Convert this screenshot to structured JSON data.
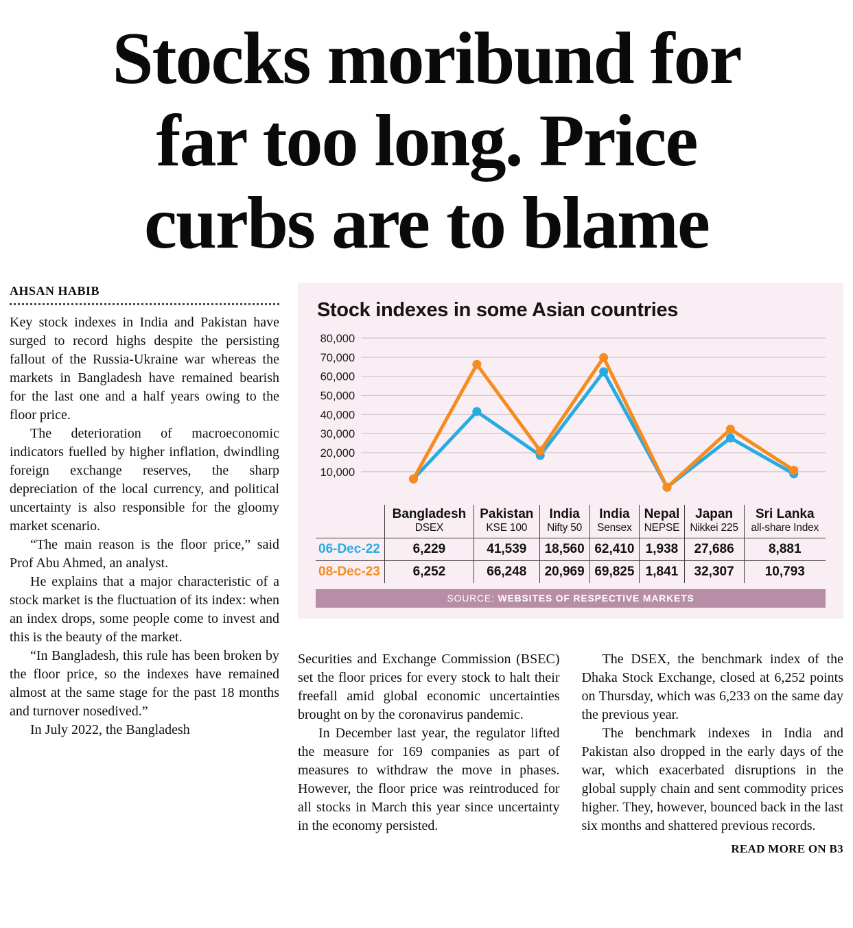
{
  "headline_lines": [
    "Stocks moribund for",
    "far too long. Price",
    "curbs are to blame"
  ],
  "byline": "AHSAN HABIB",
  "article": {
    "column1": [
      "Key stock indexes in India and Pakistan have surged to record highs despite the persisting fallout of the Russia-Ukraine war whereas the markets in Bangladesh have remained bearish for the last one and a half years owing to the floor price.",
      "The deterioration of macroeconomic indicators fuelled by higher inflation, dwindling foreign exchange reserves, the sharp depreciation of the local currency, and political uncertainty is also responsible for the gloomy market scenario.",
      "“The main reason is the floor price,” said Prof Abu Ahmed, an analyst.",
      "He explains that a major characteristic of a stock market is the fluctuation of its index: when an index drops, some people come to invest and this is the beauty of the market.",
      "“In Bangladesh, this rule has been broken by the floor price, so the indexes have remained almost at the same stage for the past 18 months and turnover nosedived.”",
      "In July 2022, the Bangladesh"
    ],
    "column2": [
      "Securities and Exchange Commission (BSEC) set the floor prices for every stock to halt their freefall amid global economic uncertainties brought on by the coronavirus pandemic.",
      "In December last year, the regulator lifted the measure for 169 companies as part of measures to withdraw the move in phases. However, the floor price was reintroduced for all stocks in March this year since uncertainty in the economy persisted."
    ],
    "column3": [
      "The DSEX, the benchmark index of the Dhaka Stock Exchange, closed at 6,252 points on Thursday, which was 6,233 on the same day the previous year.",
      "The benchmark indexes in India and Pakistan also dropped in the early days of the war, which exacerbated disruptions in the global supply chain and sent commodity prices higher. They, however, bounced back in the last six months and shattered previous records."
    ],
    "read_more": "READ MORE ON B3"
  },
  "chart_data": {
    "type": "line",
    "title": "Stock indexes in some Asian countries",
    "categories": [
      "Bangladesh DSEX",
      "Pakistan KSE 100",
      "India Nifty 50",
      "India Sensex",
      "Nepal NEPSE",
      "Japan Nikkei 225",
      "Sri Lanka all-share Index"
    ],
    "series": [
      {
        "name": "06-Dec-22",
        "color": "#29abe2",
        "values": [
          6229,
          41539,
          18560,
          62410,
          1938,
          27686,
          8881
        ]
      },
      {
        "name": "08-Dec-23",
        "color": "#f68b1f",
        "values": [
          6252,
          66248,
          20969,
          69825,
          1841,
          32307,
          10793
        ]
      }
    ],
    "ylim": [
      0,
      80000
    ],
    "ytick_step": 10000,
    "ytick_labels": [
      "10,000",
      "20,000",
      "30,000",
      "40,000",
      "50,000",
      "60,000",
      "70,000",
      "80,000"
    ],
    "grid": true,
    "legend_position": "table-row-labels",
    "source_prefix": "SOURCE:",
    "source_text": "WEBSITES OF RESPECTIVE MARKETS"
  },
  "table": {
    "columns": [
      {
        "country": "Bangladesh",
        "index": "DSEX"
      },
      {
        "country": "Pakistan",
        "index": "KSE 100"
      },
      {
        "country": "India",
        "index": "Nifty 50"
      },
      {
        "country": "India",
        "index": "Sensex"
      },
      {
        "country": "Nepal",
        "index": "NEPSE"
      },
      {
        "country": "Japan",
        "index": "Nikkei 225"
      },
      {
        "country": "Sri Lanka",
        "index": "all-share Index"
      }
    ],
    "rows": [
      {
        "label": "06-Dec-22",
        "color": "#29abe2",
        "values": [
          "6,229",
          "41,539",
          "18,560",
          "62,410",
          "1,938",
          "27,686",
          "8,881"
        ]
      },
      {
        "label": "08-Dec-23",
        "color": "#f68b1f",
        "values": [
          "6,252",
          "66,248",
          "20,969",
          "69,825",
          "1,841",
          "32,307",
          "10,793"
        ]
      }
    ]
  },
  "colors": {
    "series_2022": "#29abe2",
    "series_2023": "#f68b1f",
    "panel_bg": "#f9eef3",
    "source_bar_bg": "#b78ea6",
    "gridline": "#d3c3cd"
  }
}
